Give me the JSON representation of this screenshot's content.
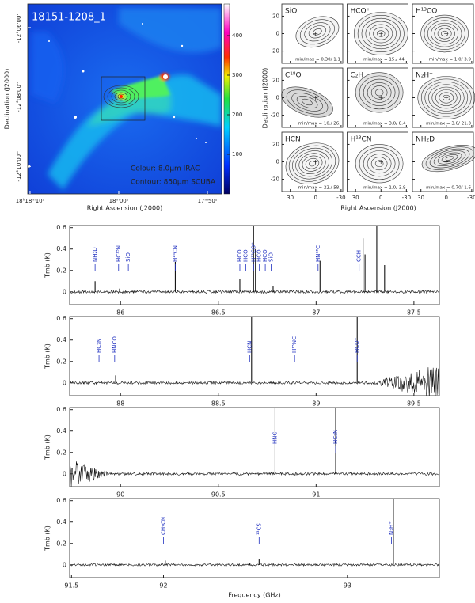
{
  "chart_data": [
    {
      "type": "image",
      "title": "18151-1208_1",
      "xlabel": "Right Ascension (J2000)",
      "ylabel": "Declination (J2000)",
      "xlim": [
        274.5428,
        274.4516
      ],
      "ylim": [
        -12.1799,
        -12.0886
      ],
      "xticks": [
        {
          "value": 274.5417,
          "label": "18ʰ18ᵐ10ˢ"
        },
        {
          "value": 274.5,
          "label": "18ᵐ00ˢ"
        },
        {
          "value": 274.4583,
          "label": "17ᵐ50ˢ"
        }
      ],
      "yticks": [
        {
          "value": -12.1,
          "label": "-12°06'00''"
        },
        {
          "value": -12.1333,
          "label": "-12°08'00''"
        },
        {
          "value": -12.1667,
          "label": "-12°10'00''"
        }
      ],
      "clim": [
        0,
        480
      ],
      "cticks": [
        100,
        200,
        300,
        400
      ],
      "annotations": [
        "Colour: 8.0μm IRAC",
        "Contour: 850μm SCUBA"
      ]
    },
    {
      "type": "contour-grid",
      "xlabel": "Right Ascension (J2000)",
      "ylabel": "Declination (J2000)",
      "xlim": [
        40,
        -32
      ],
      "ylim": [
        -34,
        34
      ],
      "xticks": [
        30,
        0,
        -30
      ],
      "yticks": [
        20,
        0,
        -20
      ],
      "panels": [
        {
          "label": "SiO",
          "minmax": "min/max =  0.30/  1.1"
        },
        {
          "label": "HCO⁺",
          "minmax": "min/max =  15./  44."
        },
        {
          "label": "H¹³CO⁺",
          "minmax": "min/max =  1.0/  3.9"
        },
        {
          "label": "C¹⁸O",
          "minmax": "min/max =  10./  26."
        },
        {
          "label": "C₂H",
          "minmax": "min/max =  3.0/  8.4"
        },
        {
          "label": "N₂H⁺",
          "minmax": "min/max =  3.0/ 21.3"
        },
        {
          "label": "HCN",
          "minmax": "min/max =  22./  58."
        },
        {
          "label": "H¹³CN",
          "minmax": "min/max =  1.0/  3.9"
        },
        {
          "label": "NH₂D",
          "minmax": "min/max =  0.70/  1.6"
        }
      ]
    },
    {
      "type": "spectrum",
      "ylabel": "Tmb (K)",
      "xlim": [
        85.74,
        87.63
      ],
      "ylim": [
        -0.12,
        0.62
      ],
      "xticks": [
        86,
        86.5,
        87,
        87.5
      ],
      "yticks": [
        0,
        0.2,
        0.4,
        0.6
      ],
      "x": [
        85.87,
        85.995,
        86.28,
        86.61,
        86.68,
        86.69,
        86.78,
        87.02,
        87.24,
        87.25,
        87.31,
        87.35
      ],
      "values": [
        0.1,
        0.03,
        0.28,
        0.12,
        0.62,
        0.4,
        0.05,
        0.29,
        0.5,
        0.35,
        0.62,
        0.25
      ],
      "lines": [
        {
          "label": "NH₂D",
          "x": 85.87
        },
        {
          "label": "HC¹⁵N",
          "x": 85.99
        },
        {
          "label": "SiO",
          "x": 86.04
        },
        {
          "label": "H¹⁵CN",
          "x": 86.28
        },
        {
          "label": "HCO",
          "x": 86.61
        },
        {
          "label": "HCO",
          "x": 86.64
        },
        {
          "label": "H¹³CO⁺",
          "x": 86.68
        },
        {
          "label": "HCO",
          "x": 86.71
        },
        {
          "label": "HCO",
          "x": 86.74
        },
        {
          "label": "SiO",
          "x": 86.77
        },
        {
          "label": "HN¹³C",
          "x": 87.01
        },
        {
          "label": "CCH",
          "x": 87.22
        }
      ]
    },
    {
      "type": "spectrum",
      "ylabel": "Tmb (K)",
      "xlim": [
        87.74,
        89.63
      ],
      "ylim": [
        -0.12,
        0.62
      ],
      "xticks": [
        88,
        88.5,
        89,
        89.5
      ],
      "yticks": [
        0,
        0.2,
        0.4,
        0.6
      ],
      "x": [
        87.975,
        88.67,
        89.21
      ],
      "values": [
        0.07,
        0.62,
        0.62
      ],
      "lines": [
        {
          "label": "HC₃N",
          "x": 87.89
        },
        {
          "label": "HNCO",
          "x": 87.97
        },
        {
          "label": "HCN",
          "x": 88.66
        },
        {
          "label": "H¹⁵NC",
          "x": 88.89
        },
        {
          "label": "HCO⁺",
          "x": 89.21
        }
      ]
    },
    {
      "type": "spectrum",
      "ylabel": "Tmb (K)",
      "xlim": [
        89.74,
        91.63
      ],
      "ylim": [
        -0.12,
        0.62
      ],
      "xticks": [
        90,
        90.5,
        91
      ],
      "yticks": [
        0,
        0.2,
        0.4,
        0.6
      ],
      "x": [
        90.79,
        91.1
      ],
      "values": [
        0.62,
        0.62
      ],
      "lines": [
        {
          "label": "HNC",
          "x": 90.79
        },
        {
          "label": "HC₃N",
          "x": 91.1
        }
      ]
    },
    {
      "type": "spectrum",
      "ylabel": "Tmb (K)",
      "xlabel": "Frequency (GHz)",
      "xlim": [
        91.49,
        93.5
      ],
      "ylim": [
        -0.12,
        0.62
      ],
      "xticks": [
        91.5,
        92,
        93
      ],
      "yticks": [
        0,
        0.2,
        0.4,
        0.6
      ],
      "x": [
        92.01,
        92.47,
        92.52,
        93.25
      ],
      "values": [
        0.04,
        0.02,
        0.05,
        0.62
      ],
      "lines": [
        {
          "label": "CH₃CN",
          "x": 92.0
        },
        {
          "label": "¹³CS",
          "x": 92.52
        },
        {
          "label": "N₂H⁺",
          "x": 93.24
        }
      ]
    }
  ]
}
